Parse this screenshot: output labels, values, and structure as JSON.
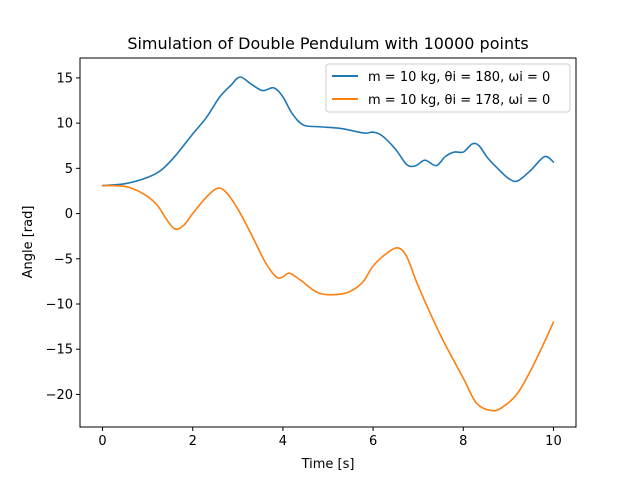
{
  "chart_data": {
    "type": "line",
    "title": "Simulation of Double Pendulum with 10000 points",
    "xlabel": "Time [s]",
    "ylabel": "Angle [rad]",
    "xlim": [
      -0.5,
      10.5
    ],
    "ylim": [
      -23.6,
      17.2
    ],
    "xticks": [
      0,
      2,
      4,
      6,
      8,
      10
    ],
    "yticks": [
      -20,
      -15,
      -10,
      -5,
      0,
      5,
      10,
      15
    ],
    "xtick_labels": [
      "0",
      "2",
      "4",
      "6",
      "8",
      "10"
    ],
    "ytick_labels": [
      "−20",
      "−15",
      "−10",
      "−5",
      "0",
      "5",
      "10",
      "15"
    ],
    "grid": false,
    "legend_position": "top-right",
    "series": [
      {
        "name": "m = 10 kg, θi = 180, ωi = 0",
        "color": "#1f77b4",
        "x": [
          0,
          0.5,
          1.0,
          1.3,
          1.6,
          2.0,
          2.3,
          2.6,
          2.85,
          3.05,
          3.3,
          3.55,
          3.8,
          4.0,
          4.2,
          4.45,
          4.8,
          5.3,
          5.8,
          6.0,
          6.2,
          6.5,
          6.75,
          6.95,
          7.15,
          7.4,
          7.6,
          7.8,
          8.0,
          8.2,
          8.35,
          8.55,
          8.8,
          9.0,
          9.2,
          9.5,
          9.8,
          10.0
        ],
        "y": [
          3.1,
          3.3,
          4.0,
          4.8,
          6.3,
          8.8,
          10.6,
          12.9,
          14.2,
          15.1,
          14.3,
          13.6,
          13.9,
          12.9,
          11.1,
          9.8,
          9.6,
          9.4,
          8.9,
          9.0,
          8.6,
          7.1,
          5.4,
          5.3,
          5.9,
          5.3,
          6.3,
          6.8,
          6.8,
          7.7,
          7.5,
          6.1,
          4.8,
          3.9,
          3.6,
          4.8,
          6.3,
          5.7
        ]
      },
      {
        "name": "m = 10 kg, θi = 178, ωi = 0",
        "color": "#ff7f0e",
        "x": [
          0,
          0.5,
          0.9,
          1.2,
          1.4,
          1.6,
          1.8,
          2.0,
          2.3,
          2.55,
          2.75,
          3.0,
          3.3,
          3.6,
          3.85,
          4.0,
          4.15,
          4.4,
          4.8,
          5.3,
          5.6,
          5.8,
          6.0,
          6.3,
          6.55,
          6.75,
          7.0,
          7.5,
          8.0,
          8.3,
          8.65,
          8.9,
          9.2,
          9.5,
          9.8,
          10.0
        ],
        "y": [
          3.1,
          3.0,
          2.2,
          1.0,
          -0.5,
          -1.7,
          -1.3,
          0.0,
          1.8,
          2.8,
          2.3,
          0.5,
          -2.3,
          -5.3,
          -7.0,
          -7.0,
          -6.6,
          -7.4,
          -8.8,
          -8.9,
          -8.3,
          -7.4,
          -5.8,
          -4.4,
          -3.8,
          -4.8,
          -8.0,
          -13.5,
          -18.2,
          -21.0,
          -21.8,
          -21.3,
          -19.9,
          -17.3,
          -14.2,
          -12.0
        ]
      }
    ]
  }
}
